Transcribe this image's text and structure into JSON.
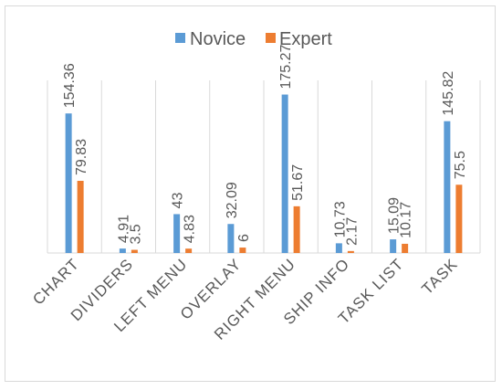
{
  "chart_data": {
    "type": "bar",
    "categories": [
      "CHART",
      "DIVIDERS",
      "LEFT MENU",
      "OVERLAY",
      "RIGHT MENU",
      "SHIP INFO",
      "TASK LIST",
      "TASK"
    ],
    "series": [
      {
        "name": "Novice",
        "color": "#5b9bd5",
        "values": [
          154.36,
          4.91,
          43,
          32.09,
          175.27,
          10.73,
          15.09,
          145.82
        ]
      },
      {
        "name": "Expert",
        "color": "#ed7d31",
        "values": [
          79.83,
          3.5,
          4.83,
          6,
          51.67,
          2.17,
          10.17,
          75.5
        ]
      }
    ],
    "data_labels": [
      [
        "154.36",
        "4.91",
        "43",
        "32.09",
        "175.27",
        "10.73",
        "15.09",
        "145.82"
      ],
      [
        "79.83",
        "3.5",
        "4.83",
        "6",
        "51.67",
        "2.17",
        "10.17",
        "75.5"
      ]
    ],
    "title": "",
    "xlabel": "",
    "ylabel": "",
    "ylim": [
      0,
      195
    ],
    "grid": false,
    "legend": "top-center"
  }
}
